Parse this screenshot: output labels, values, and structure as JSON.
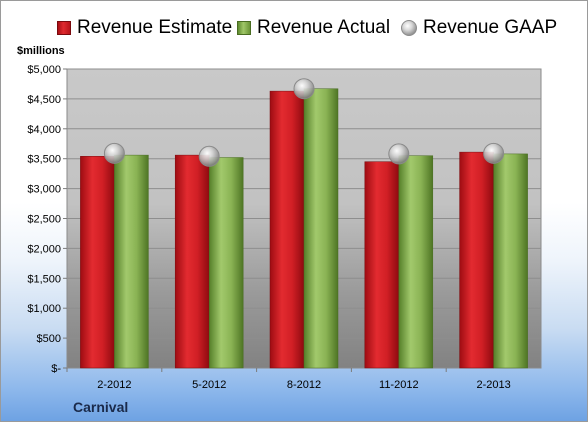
{
  "legend": {
    "estimate_label": "Revenue Estimate",
    "actual_label": "Revenue Actual",
    "gaap_label": "Revenue GAAP"
  },
  "unit_label": "$millions",
  "company": "Carnival",
  "colors": {
    "estimate": "#c4161c",
    "actual": "#8ab354",
    "gaap": "#b0b0b0"
  },
  "chart_data": {
    "type": "bar",
    "title": "",
    "xlabel": "",
    "ylabel": "$millions",
    "categories": [
      "2-2012",
      "5-2012",
      "8-2012",
      "11-2012",
      "2-2013"
    ],
    "series": [
      {
        "name": "Revenue Estimate",
        "values": [
          3540,
          3560,
          4630,
          3450,
          3610
        ]
      },
      {
        "name": "Revenue Actual",
        "values": [
          3560,
          3520,
          4670,
          3550,
          3580
        ]
      },
      {
        "name": "Revenue GAAP",
        "values": [
          3590,
          3540,
          4670,
          3580,
          3590
        ]
      }
    ],
    "ylim": [
      0,
      5000
    ],
    "y_ticks": [
      0,
      500,
      1000,
      1500,
      2000,
      2500,
      3000,
      3500,
      4000,
      4500,
      5000
    ],
    "y_tick_labels": [
      "$-",
      "$500",
      "$1,000",
      "$1,500",
      "$2,000",
      "$2,500",
      "$3,000",
      "$3,500",
      "$4,000",
      "$4,500",
      "$5,000"
    ],
    "grid": true,
    "legend_position": "top"
  }
}
